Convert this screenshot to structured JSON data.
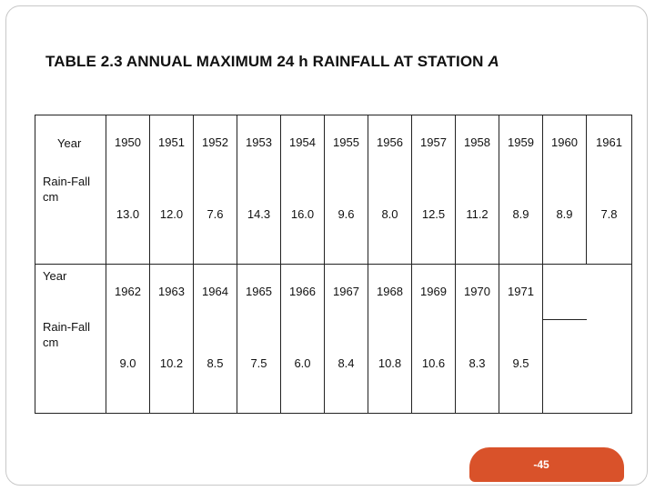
{
  "title": {
    "prefix": "TABLE 2.3 ANNUAL MAXIMUM 24 h RAINFALL AT STATION",
    "station": "A"
  },
  "labels": {
    "year": "Year",
    "rainfall": "Rain-Fall",
    "unit": "cm"
  },
  "rows": [
    {
      "years": [
        "1950",
        "1951",
        "1952",
        "1953",
        "1954",
        "1955",
        "1956",
        "1957",
        "1958",
        "1959",
        "1960",
        "1961"
      ],
      "rainfall": [
        "13.0",
        "12.0",
        "7.6",
        "14.3",
        "16.0",
        "9.6",
        "8.0",
        "12.5",
        "11.2",
        "8.9",
        "8.9",
        "7.8"
      ]
    },
    {
      "years": [
        "1962",
        "1963",
        "1964",
        "1965",
        "1966",
        "1967",
        "1968",
        "1969",
        "1970",
        "1971"
      ],
      "rainfall": [
        "9.0",
        "10.2",
        "8.5",
        "7.5",
        "6.0",
        "8.4",
        "10.8",
        "10.6",
        "8.3",
        "9.5"
      ]
    }
  ],
  "page_number": "-45",
  "colors": {
    "badge": "#d9522a",
    "frame": "#c8c8c8"
  }
}
